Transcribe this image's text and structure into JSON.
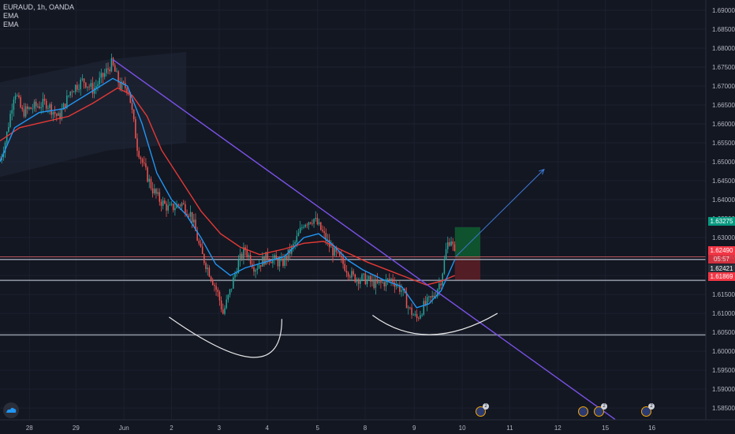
{
  "header": {
    "symbol_line": "EURAUD, 1h, OANDA",
    "indicator_1": "EMA",
    "indicator_2": "EMA"
  },
  "tags": {
    "target": "1.63275",
    "current": "1.62490",
    "countdown": "05:57",
    "ema": "1.62421",
    "stop": "1.61869"
  },
  "events": {
    "badge": "2"
  },
  "colors": {
    "background": "#131722",
    "bull": "#26a69a",
    "bear": "#ef5350",
    "ema_fast": "#2196f3",
    "ema_slow": "#e53935",
    "trendline": "#7b52e8",
    "profit_zone": "#0f5d30",
    "loss_zone": "#5e1f24",
    "target_tag": "#089981",
    "stop_tag": "#f23645"
  },
  "chart_data": {
    "type": "candlestick",
    "symbol": "EURAUD",
    "timeframe": "1h",
    "y_ticks": [
      "1.69000",
      "1.68500",
      "1.68000",
      "1.67500",
      "1.67000",
      "1.66500",
      "1.66000",
      "1.65500",
      "1.65000",
      "1.64500",
      "1.64000",
      "1.63500",
      "1.63000",
      "1.62500",
      "1.62000",
      "1.61500",
      "1.61000",
      "1.60500",
      "1.60000",
      "1.59500",
      "1.59000",
      "1.58500"
    ],
    "ylim": [
      1.5819,
      1.6927
    ],
    "x_ticks": [
      {
        "label": "28",
        "t": 0.6
      },
      {
        "label": "29",
        "t": 1.55
      },
      {
        "label": "Jun",
        "t": 2.53
      },
      {
        "label": "2",
        "t": 3.5
      },
      {
        "label": "3",
        "t": 4.47
      },
      {
        "label": "4",
        "t": 5.45
      },
      {
        "label": "5",
        "t": 6.48
      },
      {
        "label": "8",
        "t": 7.45
      },
      {
        "label": "9",
        "t": 8.45
      },
      {
        "label": "10",
        "t": 9.43
      },
      {
        "label": "11",
        "t": 10.4
      },
      {
        "label": "12",
        "t": 11.38
      },
      {
        "label": "15",
        "t": 12.35
      },
      {
        "label": "16",
        "t": 13.3
      }
    ],
    "xlim": [
      0,
      14.4
    ],
    "price_path": [
      [
        0.0,
        1.6505
      ],
      [
        0.12,
        1.656
      ],
      [
        0.3,
        1.669
      ],
      [
        0.45,
        1.663
      ],
      [
        0.7,
        1.6645
      ],
      [
        0.95,
        1.6655
      ],
      [
        1.2,
        1.6615
      ],
      [
        1.45,
        1.669
      ],
      [
        1.7,
        1.6715
      ],
      [
        1.9,
        1.669
      ],
      [
        2.15,
        1.6735
      ],
      [
        2.28,
        1.676
      ],
      [
        2.45,
        1.67
      ],
      [
        2.62,
        1.6695
      ],
      [
        2.8,
        1.654
      ],
      [
        2.95,
        1.648
      ],
      [
        3.1,
        1.643
      ],
      [
        3.25,
        1.64
      ],
      [
        3.45,
        1.6375
      ],
      [
        3.7,
        1.639
      ],
      [
        3.9,
        1.636
      ],
      [
        4.1,
        1.626
      ],
      [
        4.3,
        1.62
      ],
      [
        4.45,
        1.615
      ],
      [
        4.55,
        1.61
      ],
      [
        4.7,
        1.616
      ],
      [
        4.85,
        1.623
      ],
      [
        5.0,
        1.627
      ],
      [
        5.2,
        1.622
      ],
      [
        5.45,
        1.625
      ],
      [
        5.75,
        1.623
      ],
      [
        6.0,
        1.628
      ],
      [
        6.2,
        1.634
      ],
      [
        6.4,
        1.635
      ],
      [
        6.55,
        1.632
      ],
      [
        6.75,
        1.627
      ],
      [
        6.95,
        1.624
      ],
      [
        7.2,
        1.6195
      ],
      [
        7.45,
        1.619
      ],
      [
        7.7,
        1.6175
      ],
      [
        8.0,
        1.619
      ],
      [
        8.2,
        1.616
      ],
      [
        8.35,
        1.611
      ],
      [
        8.5,
        1.6085
      ],
      [
        8.65,
        1.612
      ],
      [
        8.85,
        1.6145
      ],
      [
        9.0,
        1.619
      ],
      [
        9.12,
        1.628
      ],
      [
        9.2,
        1.63
      ],
      [
        9.28,
        1.625
      ]
    ],
    "ema_fast_path": [
      [
        0.0,
        1.65
      ],
      [
        0.3,
        1.659
      ],
      [
        0.8,
        1.663
      ],
      [
        1.3,
        1.664
      ],
      [
        1.8,
        1.668
      ],
      [
        2.3,
        1.672
      ],
      [
        2.6,
        1.67
      ],
      [
        2.9,
        1.66
      ],
      [
        3.2,
        1.647
      ],
      [
        3.5,
        1.64
      ],
      [
        3.8,
        1.636
      ],
      [
        4.1,
        1.63
      ],
      [
        4.4,
        1.623
      ],
      [
        4.7,
        1.62
      ],
      [
        5.0,
        1.622
      ],
      [
        5.4,
        1.6235
      ],
      [
        5.8,
        1.625
      ],
      [
        6.2,
        1.63
      ],
      [
        6.5,
        1.631
      ],
      [
        6.8,
        1.628
      ],
      [
        7.1,
        1.624
      ],
      [
        7.4,
        1.6215
      ],
      [
        7.8,
        1.619
      ],
      [
        8.2,
        1.617
      ],
      [
        8.5,
        1.6115
      ],
      [
        8.75,
        1.6125
      ],
      [
        9.0,
        1.616
      ],
      [
        9.28,
        1.6242
      ]
    ],
    "ema_slow_path": [
      [
        0.0,
        1.6555
      ],
      [
        0.4,
        1.659
      ],
      [
        0.9,
        1.6605
      ],
      [
        1.4,
        1.662
      ],
      [
        1.9,
        1.6655
      ],
      [
        2.4,
        1.6695
      ],
      [
        2.7,
        1.6675
      ],
      [
        3.0,
        1.662
      ],
      [
        3.3,
        1.653
      ],
      [
        3.7,
        1.645
      ],
      [
        4.1,
        1.637
      ],
      [
        4.5,
        1.631
      ],
      [
        4.9,
        1.6275
      ],
      [
        5.3,
        1.6255
      ],
      [
        5.8,
        1.627
      ],
      [
        6.2,
        1.6285
      ],
      [
        6.6,
        1.629
      ],
      [
        7.0,
        1.6265
      ],
      [
        7.5,
        1.6235
      ],
      [
        8.0,
        1.621
      ],
      [
        8.4,
        1.619
      ],
      [
        8.7,
        1.6175
      ],
      [
        9.0,
        1.6185
      ],
      [
        9.28,
        1.62
      ]
    ],
    "trendline": {
      "from": [
        2.3,
        1.677
      ],
      "to": [
        12.55,
        1.582
      ]
    },
    "projection_arrow": {
      "from": [
        9.3,
        1.625
      ],
      "to": [
        11.1,
        1.648
      ]
    },
    "position": {
      "t_start": 9.28,
      "t_end": 9.8,
      "target": 1.63275,
      "entry": 1.6247,
      "stop": 1.61869
    },
    "horizontal_levels": [
      1.6249,
      1.62421,
      1.61869,
      1.6043
    ],
    "cup_curves": [
      {
        "from": [
          3.45,
          1.609
        ],
        "ctrl": [
          5.75,
          1.588
        ],
        "to": [
          5.75,
          1.6085
        ]
      },
      {
        "from": [
          7.6,
          1.6095
        ],
        "ctrl": [
          8.7,
          1.599
        ],
        "to": [
          10.15,
          1.61
        ]
      }
    ],
    "shaded_channel": [
      [
        0.0,
        1.671
      ],
      [
        2.2,
        1.677
      ],
      [
        3.8,
        1.679
      ],
      [
        3.8,
        1.655
      ],
      [
        2.2,
        1.653
      ],
      [
        0.0,
        1.646
      ]
    ]
  }
}
